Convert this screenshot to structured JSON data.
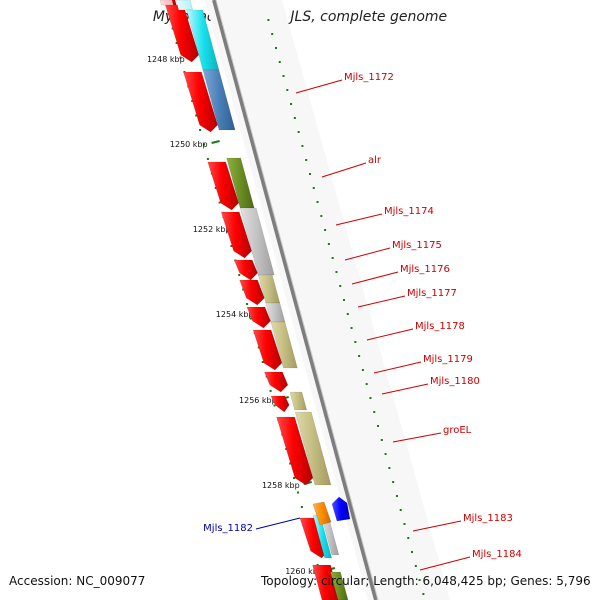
{
  "title": "Mycobacterium sp. JLS, complete genome",
  "footer": {
    "accession": "Accession: NC_009077",
    "summary": "Topology: circular; Length: 6,048,425 bp; Genes: 5,796"
  },
  "colors": {
    "forward_strand": "#ff0000",
    "backbone": "#7a7a7a",
    "ruler": "#1a7a1a",
    "label_red": "#cc0000",
    "label_blue": "#0000aa"
  },
  "ruler_labels": [
    "1248 kbp",
    "1250 kbp",
    "1252 kbp",
    "1254 kbp",
    "1256 kbp",
    "1258 kbp",
    "1260 kbp"
  ],
  "genes": [
    {
      "label": "Mjls_1172",
      "color": "red"
    },
    {
      "label": "alr",
      "color": "red"
    },
    {
      "label": "Mjls_1174",
      "color": "red"
    },
    {
      "label": "Mjls_1175",
      "color": "red"
    },
    {
      "label": "Mjls_1176",
      "color": "red"
    },
    {
      "label": "Mjls_1177",
      "color": "red"
    },
    {
      "label": "Mjls_1178",
      "color": "red"
    },
    {
      "label": "Mjls_1179",
      "color": "red"
    },
    {
      "label": "Mjls_1180",
      "color": "red"
    },
    {
      "label": "groEL",
      "color": "red"
    },
    {
      "label": "Mjls_1182",
      "color": "blue"
    },
    {
      "label": "Mjls_1183",
      "color": "red"
    },
    {
      "label": "Mjls_1184",
      "color": "red"
    }
  ]
}
